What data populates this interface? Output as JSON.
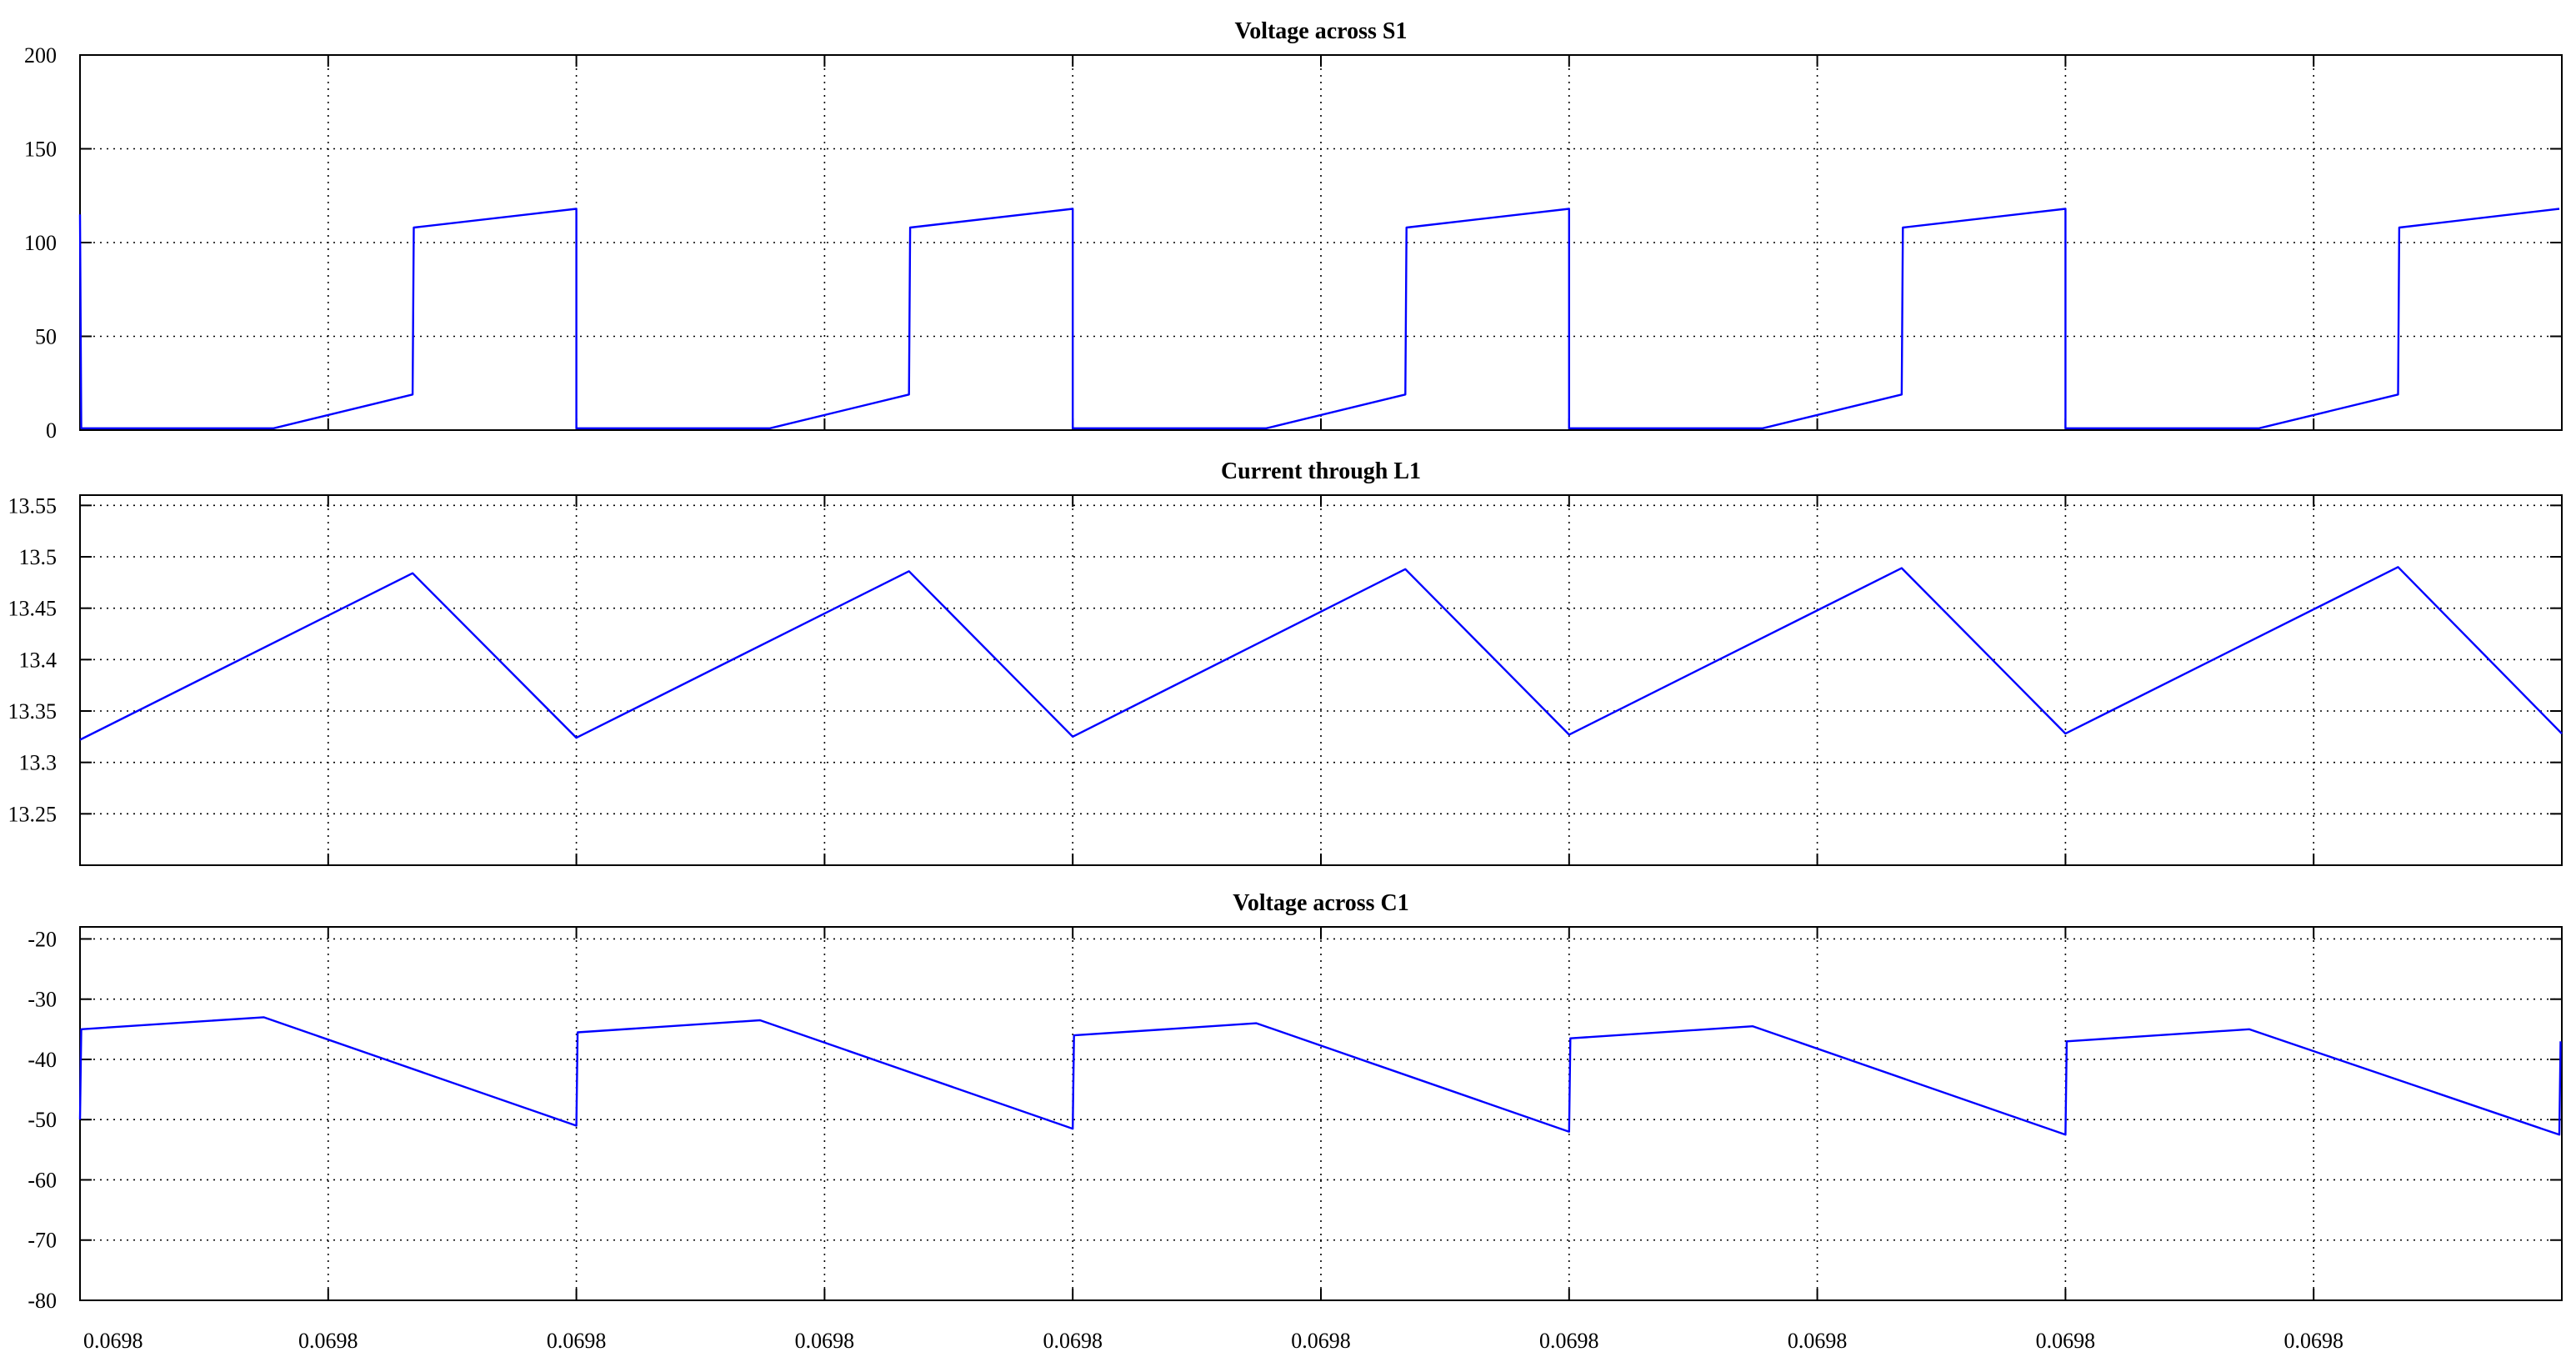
{
  "x_tick_label": "0.0698",
  "chart_data": [
    {
      "type": "line",
      "title": "Voltage across S1",
      "xlabel": "",
      "ylabel": "",
      "ylim": [
        0,
        200
      ],
      "yticks": [
        0,
        50,
        100,
        150,
        200
      ],
      "xlim": [
        0,
        10
      ],
      "x_ticks": [
        0,
        1,
        2,
        3,
        4,
        5,
        6,
        7,
        8,
        9,
        10
      ],
      "grid": true,
      "color": "#0000ff",
      "series": [
        {
          "x": [
            0,
            0.005,
            0.02,
            0.78,
            1.34,
            1.345,
            2.0,
            2.0,
            2.78,
            3.34,
            3.345,
            4.0,
            4.0,
            4.78,
            5.34,
            5.345,
            6.0,
            6.0,
            6.78,
            7.34,
            7.345,
            8.0,
            8.0,
            8.78,
            9.34,
            9.345,
            9.99
          ],
          "y": [
            115,
            1,
            1,
            1,
            19,
            108,
            118,
            1,
            1,
            19,
            108,
            118,
            1,
            1,
            19,
            108,
            118,
            1,
            1,
            19,
            108,
            118,
            1,
            1,
            19,
            108,
            118
          ]
        }
      ]
    },
    {
      "type": "line",
      "title": "Current through L1",
      "xlabel": "",
      "ylabel": "",
      "ylim": [
        13.2,
        13.56
      ],
      "yticks": [
        13.25,
        13.3,
        13.35,
        13.4,
        13.45,
        13.5,
        13.55
      ],
      "ytick_labels": [
        "13.25",
        "13.3",
        "13.35",
        "13.4",
        "13.45",
        "13.5",
        "13.55"
      ],
      "xlim": [
        0,
        10
      ],
      "x_ticks": [
        0,
        1,
        2,
        3,
        4,
        5,
        6,
        7,
        8,
        9,
        10
      ],
      "grid": true,
      "color": "#0000ff",
      "series": [
        {
          "x": [
            0,
            1.34,
            2.0,
            3.34,
            4.0,
            5.34,
            6.0,
            7.34,
            8.0,
            9.34,
            10.0
          ],
          "y": [
            13.322,
            13.484,
            13.324,
            13.486,
            13.325,
            13.488,
            13.327,
            13.489,
            13.328,
            13.49,
            13.328
          ]
        }
      ]
    },
    {
      "type": "line",
      "title": "Voltage across C1",
      "xlabel": "",
      "ylabel": "",
      "ylim": [
        -80,
        -18
      ],
      "yticks": [
        -80,
        -70,
        -60,
        -50,
        -40,
        -30,
        -20
      ],
      "xlim": [
        0,
        10
      ],
      "x_ticks": [
        0,
        1,
        2,
        3,
        4,
        5,
        6,
        7,
        8,
        9,
        10
      ],
      "grid": true,
      "color": "#0000ff",
      "series": [
        {
          "x": [
            0,
            0.005,
            0.74,
            2.0,
            2.005,
            2.74,
            4.0,
            4.005,
            4.74,
            6.0,
            6.005,
            6.74,
            8.0,
            8.005,
            8.74,
            9.99,
            9.995
          ],
          "y": [
            -50,
            -35,
            -33,
            -51,
            -35.5,
            -33.5,
            -51.5,
            -36,
            -34,
            -52,
            -36.5,
            -34.5,
            -52.5,
            -37,
            -35,
            -52.5,
            -37
          ]
        }
      ]
    }
  ]
}
